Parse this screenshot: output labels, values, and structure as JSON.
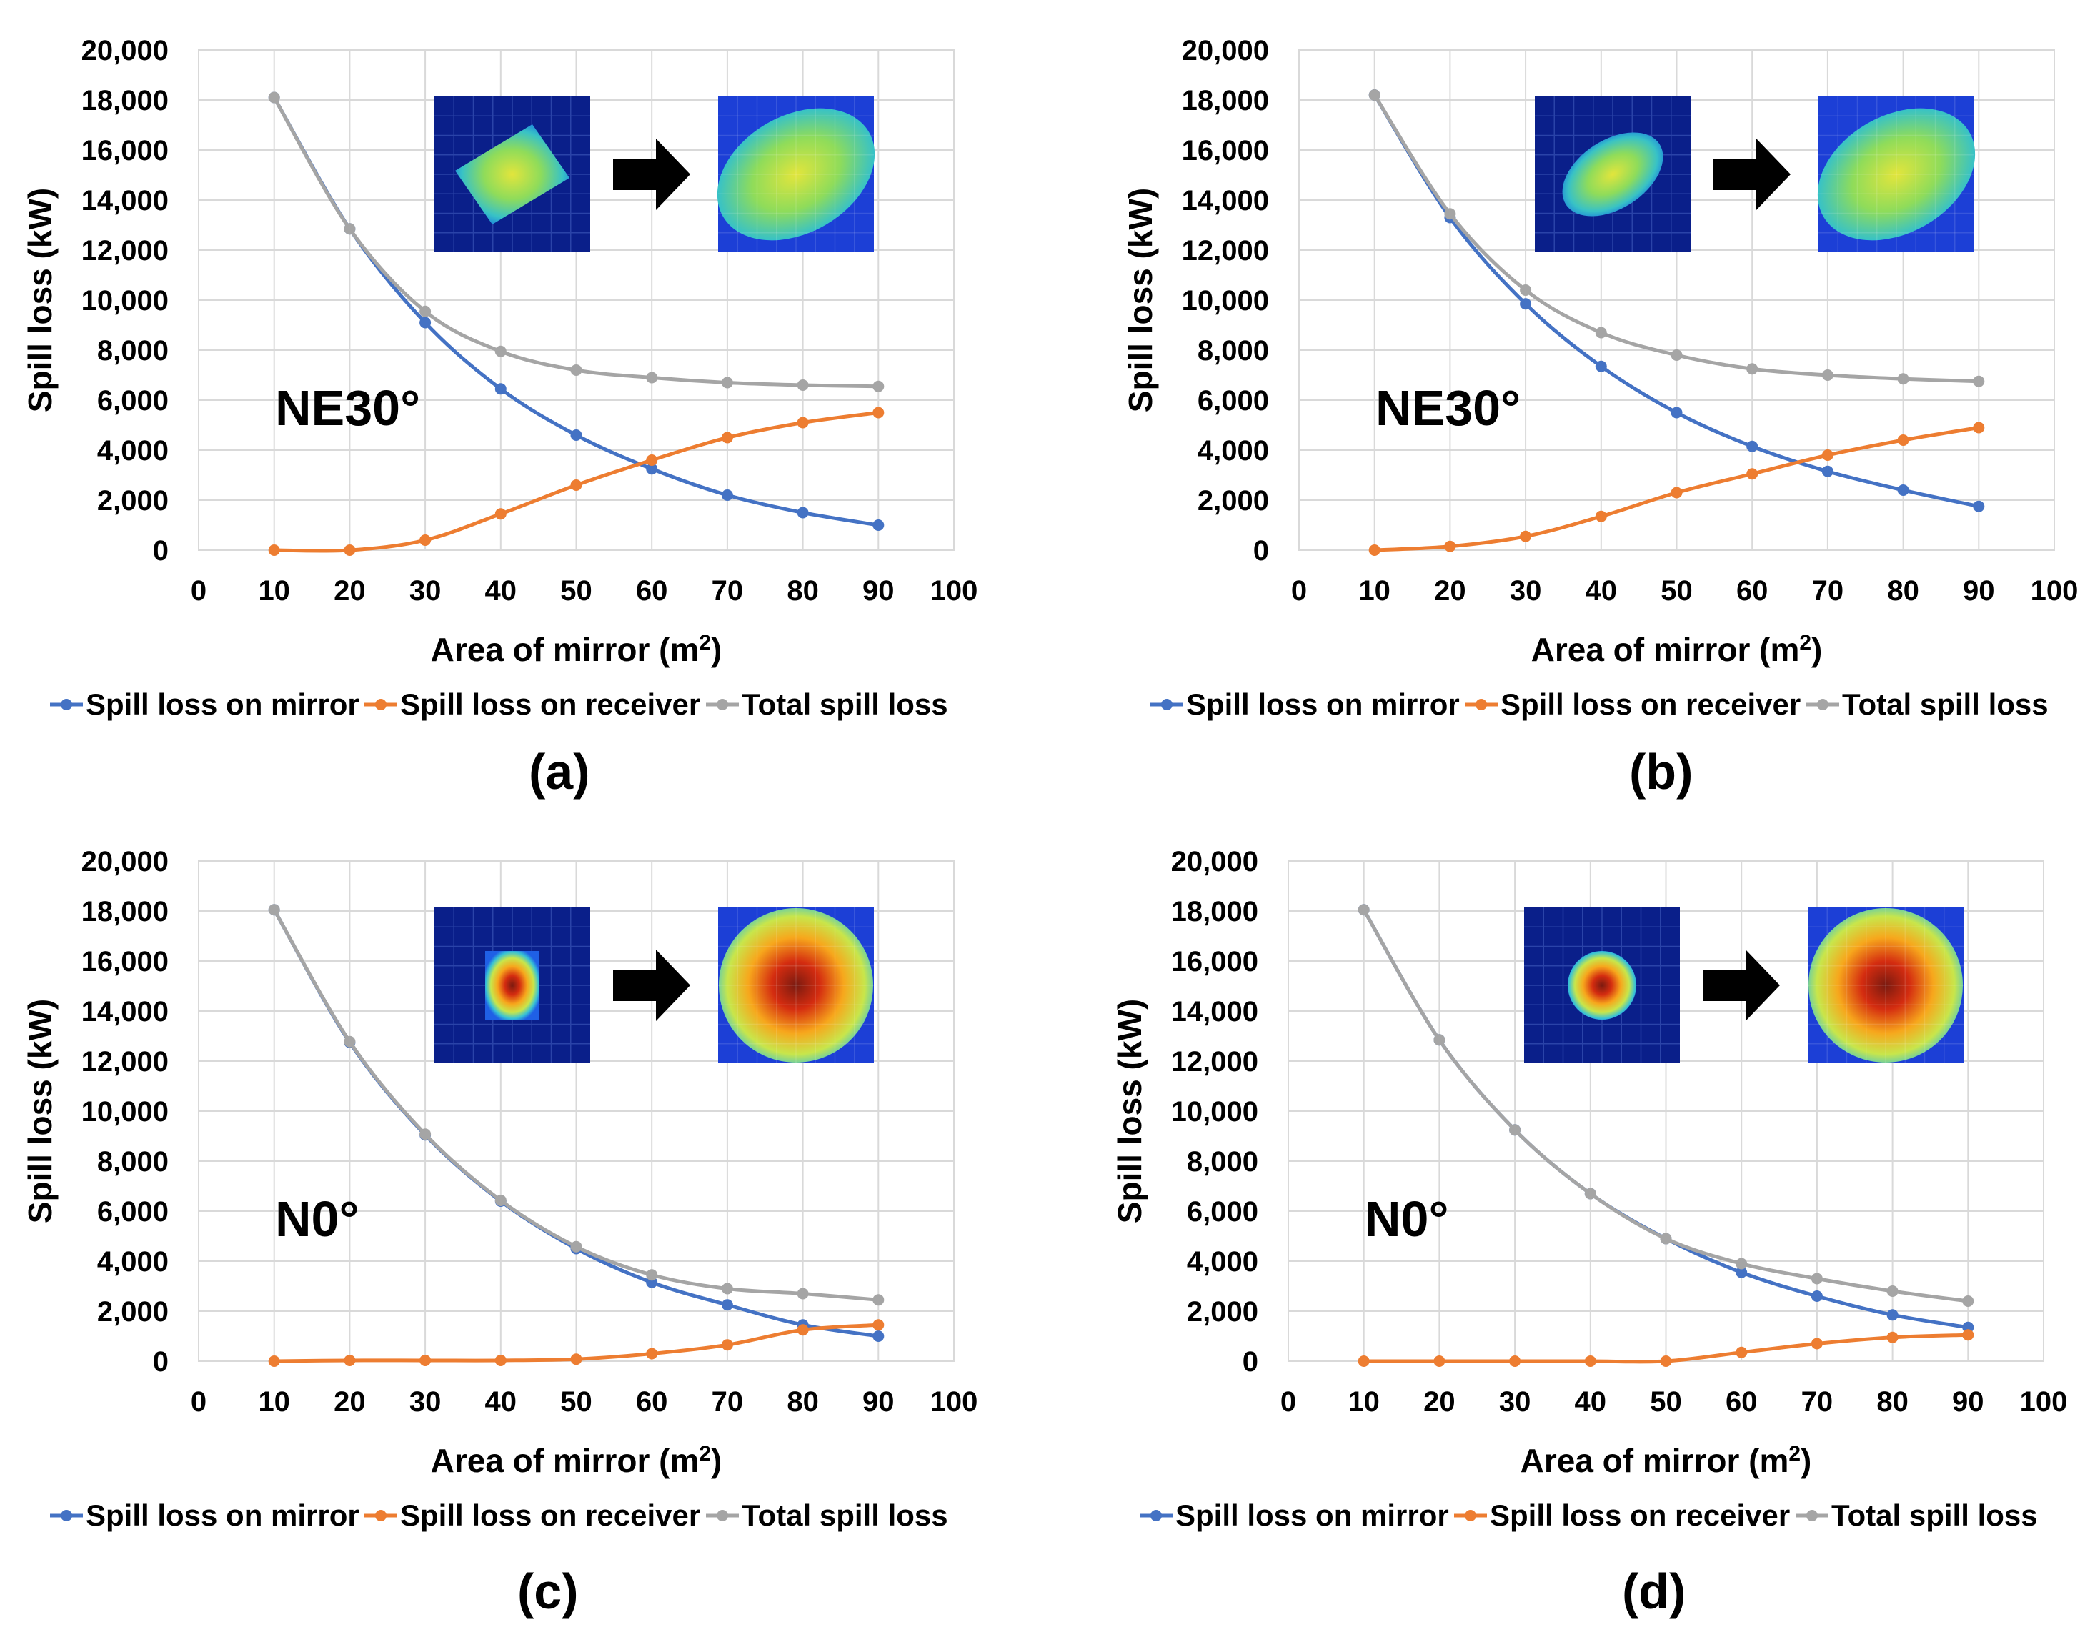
{
  "axis_titles": {
    "x_main": "Area of mirror (m",
    "x_sup": "2",
    "x_close": ")",
    "y": "Spill loss (kW)"
  },
  "legend_labels": [
    "Spill loss on mirror",
    "Spill loss on receiver",
    "Total spill loss"
  ],
  "colors": {
    "mirror": "#4472C4",
    "receiver": "#ED7D31",
    "total": "#A5A5A5",
    "grid": "#D9D9D9"
  },
  "chart_data": [
    {
      "panel": "(a)",
      "type": "line",
      "orientation_label": "NE30°",
      "inset_shape": "diamond",
      "inset_palette": "yellow-green",
      "x": [
        10,
        20,
        30,
        40,
        50,
        60,
        70,
        80,
        90
      ],
      "xlim": [
        0,
        100
      ],
      "xticks": [
        "0",
        "10",
        "20",
        "30",
        "40",
        "50",
        "60",
        "70",
        "80",
        "90",
        "100"
      ],
      "ylim": [
        0,
        20000
      ],
      "yticks": [
        "0",
        "2,000",
        "4,000",
        "6,000",
        "8,000",
        "10,000",
        "12,000",
        "14,000",
        "16,000",
        "18,000",
        "20,000"
      ],
      "xlabel": "Area of mirror (m2)",
      "ylabel": "Spill loss (kW)",
      "series": [
        {
          "name": "Spill loss on mirror",
          "values": [
            18100,
            12850,
            9100,
            6450,
            4600,
            3250,
            2200,
            1500,
            1000
          ]
        },
        {
          "name": "Spill loss on receiver",
          "values": [
            0,
            0,
            400,
            1450,
            2600,
            3600,
            4500,
            5100,
            5500
          ]
        },
        {
          "name": "Total spill loss",
          "values": [
            18100,
            12850,
            9550,
            7950,
            7200,
            6900,
            6700,
            6600,
            6550
          ]
        }
      ]
    },
    {
      "panel": "(b)",
      "type": "line",
      "orientation_label": "NE30°",
      "inset_shape": "ellipse",
      "inset_palette": "yellow-green",
      "x": [
        10,
        20,
        30,
        40,
        50,
        60,
        70,
        80,
        90
      ],
      "xlim": [
        0,
        100
      ],
      "xticks": [
        "0",
        "10",
        "20",
        "30",
        "40",
        "50",
        "60",
        "70",
        "80",
        "90",
        "100"
      ],
      "ylim": [
        0,
        20000
      ],
      "yticks": [
        "0",
        "2,000",
        "4,000",
        "6,000",
        "8,000",
        "10,000",
        "12,000",
        "14,000",
        "16,000",
        "18,000",
        "20,000"
      ],
      "xlabel": "Area of mirror (m2)",
      "ylabel": "Spill loss (kW)",
      "series": [
        {
          "name": "Spill loss on mirror",
          "values": [
            18200,
            13300,
            9850,
            7350,
            5500,
            4150,
            3150,
            2400,
            1750
          ]
        },
        {
          "name": "Spill loss on receiver",
          "values": [
            0,
            150,
            550,
            1350,
            2300,
            3050,
            3800,
            4400,
            4900
          ]
        },
        {
          "name": "Total spill loss",
          "values": [
            18200,
            13450,
            10400,
            8700,
            7800,
            7250,
            7000,
            6850,
            6750
          ]
        }
      ]
    },
    {
      "panel": "(c)",
      "type": "line",
      "orientation_label": "N0°",
      "inset_shape": "rectangle",
      "inset_palette": "red",
      "x": [
        10,
        20,
        30,
        40,
        50,
        60,
        70,
        80,
        90
      ],
      "xlim": [
        0,
        100
      ],
      "xticks": [
        "0",
        "10",
        "20",
        "30",
        "40",
        "50",
        "60",
        "70",
        "80",
        "90",
        "100"
      ],
      "ylim": [
        0,
        20000
      ],
      "yticks": [
        "0",
        "2,000",
        "4,000",
        "6,000",
        "8,000",
        "10,000",
        "12,000",
        "14,000",
        "16,000",
        "18,000",
        "20,000"
      ],
      "xlabel": "Area of mirror (m2)",
      "ylabel": "Spill loss (kW)",
      "series": [
        {
          "name": "Spill loss on mirror",
          "values": [
            18050,
            12750,
            9050,
            6400,
            4500,
            3150,
            2250,
            1450,
            1000
          ]
        },
        {
          "name": "Spill loss on receiver",
          "values": [
            0,
            30,
            30,
            30,
            80,
            300,
            650,
            1250,
            1450
          ]
        },
        {
          "name": "Total spill loss",
          "values": [
            18050,
            12780,
            9080,
            6430,
            4580,
            3450,
            2900,
            2700,
            2450
          ]
        }
      ]
    },
    {
      "panel": "(d)",
      "type": "line",
      "orientation_label": "N0°",
      "inset_shape": "circle",
      "inset_palette": "red",
      "x": [
        10,
        20,
        30,
        40,
        50,
        60,
        70,
        80,
        90
      ],
      "xlim": [
        0,
        100
      ],
      "xticks": [
        "0",
        "10",
        "20",
        "30",
        "40",
        "50",
        "60",
        "70",
        "80",
        "90",
        "100"
      ],
      "ylim": [
        0,
        20000
      ],
      "yticks": [
        "0",
        "2,000",
        "4,000",
        "6,000",
        "8,000",
        "10,000",
        "12,000",
        "14,000",
        "16,000",
        "18,000",
        "20,000"
      ],
      "xlabel": "Area of mirror (m2)",
      "ylabel": "Spill loss (kW)",
      "series": [
        {
          "name": "Spill loss on mirror",
          "values": [
            18050,
            12850,
            9250,
            6700,
            4900,
            3550,
            2600,
            1850,
            1350
          ]
        },
        {
          "name": "Spill loss on receiver",
          "values": [
            0,
            0,
            0,
            0,
            0,
            350,
            700,
            950,
            1050
          ]
        },
        {
          "name": "Total spill loss",
          "values": [
            18050,
            12850,
            9250,
            6700,
            4900,
            3900,
            3300,
            2800,
            2400
          ]
        }
      ]
    }
  ]
}
